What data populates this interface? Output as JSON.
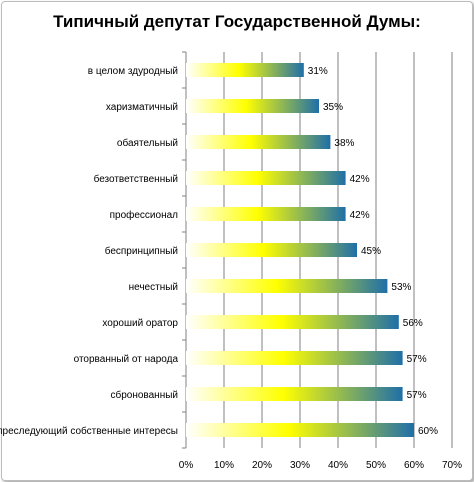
{
  "chart_data": {
    "type": "bar",
    "orientation": "horizontal",
    "title": "Типичный депутат Государственной Думы:",
    "categories": [
      "в целом здуродный",
      "харизматичный",
      "обаятельный",
      "безответственный",
      "профессионал",
      "беспринципный",
      "нечестный",
      "хороший оратор",
      "оторванный от народа",
      "сбронованный",
      "преследующий собственные интересы"
    ],
    "values": [
      31,
      35,
      38,
      42,
      42,
      45,
      53,
      56,
      57,
      57,
      60
    ],
    "value_labels": [
      "31%",
      "35%",
      "38%",
      "42%",
      "42%",
      "45%",
      "53%",
      "56%",
      "57%",
      "57%",
      "60%"
    ],
    "x_ticks": [
      "0%",
      "10%",
      "20%",
      "30%",
      "40%",
      "50%",
      "60%",
      "70%"
    ],
    "xlim": [
      0,
      70
    ],
    "grid": true,
    "legend": "none",
    "colors": {
      "bar_start": "#ffffff",
      "bar_mid": "#ffff00",
      "bar_end": "#1f6fa8",
      "grid": "#808080",
      "axis": "#808080"
    }
  }
}
